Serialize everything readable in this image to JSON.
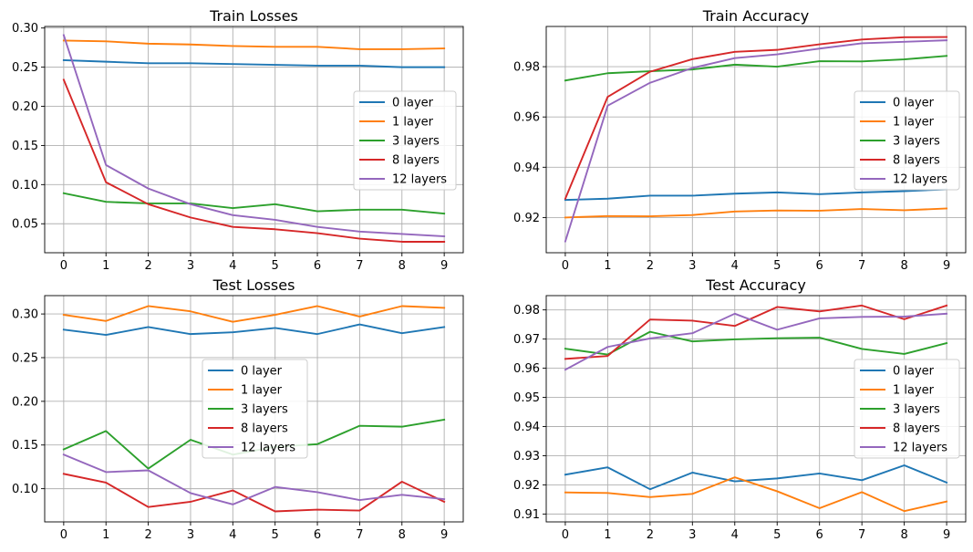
{
  "colors": {
    "c0": "#1f77b4",
    "c1": "#ff7f0e",
    "c2": "#2ca02c",
    "c3": "#d62728",
    "c4": "#9467bd",
    "grid": "#b0b0b0",
    "legend_border": "#cccccc"
  },
  "chart_data": [
    {
      "type": "line",
      "title": "Train Losses",
      "xlabel": "",
      "ylabel": "",
      "x": [
        0,
        1,
        2,
        3,
        4,
        5,
        6,
        7,
        8,
        9
      ],
      "xticks": [
        "0",
        "1",
        "2",
        "3",
        "4",
        "5",
        "6",
        "7",
        "8",
        "9"
      ],
      "yticks": [
        0.05,
        0.1,
        0.15,
        0.2,
        0.25,
        0.3
      ],
      "ytick_labels": [
        "0.05",
        "0.10",
        "0.15",
        "0.20",
        "0.25",
        "0.30"
      ],
      "xlim": [
        -0.45,
        9.45
      ],
      "ylim": [
        0.013,
        0.302
      ],
      "grid": true,
      "legend_position": "center-right",
      "series": [
        {
          "name": "0 layer",
          "color": "c0",
          "values": [
            0.259,
            0.257,
            0.255,
            0.255,
            0.254,
            0.253,
            0.252,
            0.252,
            0.25,
            0.25
          ]
        },
        {
          "name": "1 layer",
          "color": "c1",
          "values": [
            0.284,
            0.283,
            0.28,
            0.279,
            0.277,
            0.276,
            0.276,
            0.273,
            0.273,
            0.274
          ]
        },
        {
          "name": "3 layers",
          "color": "c2",
          "values": [
            0.089,
            0.078,
            0.076,
            0.076,
            0.07,
            0.075,
            0.066,
            0.068,
            0.068,
            0.063
          ]
        },
        {
          "name": "8 layers",
          "color": "c3",
          "values": [
            0.234,
            0.103,
            0.075,
            0.058,
            0.046,
            0.043,
            0.038,
            0.031,
            0.027,
            0.027
          ]
        },
        {
          "name": "12 layers",
          "color": "c4",
          "values": [
            0.291,
            0.125,
            0.095,
            0.075,
            0.061,
            0.055,
            0.046,
            0.04,
            0.037,
            0.034
          ]
        }
      ]
    },
    {
      "type": "line",
      "title": "Train Accuracy",
      "xlabel": "",
      "ylabel": "",
      "x": [
        0,
        1,
        2,
        3,
        4,
        5,
        6,
        7,
        8,
        9
      ],
      "xticks": [
        "0",
        "1",
        "2",
        "3",
        "4",
        "5",
        "6",
        "7",
        "8",
        "9"
      ],
      "yticks": [
        0.92,
        0.94,
        0.96,
        0.98
      ],
      "ytick_labels": [
        "0.92",
        "0.94",
        "0.96",
        "0.98"
      ],
      "xlim": [
        -0.45,
        9.45
      ],
      "ylim": [
        0.906,
        0.996
      ],
      "grid": true,
      "legend_position": "center-right",
      "series": [
        {
          "name": "0 layer",
          "color": "c0",
          "values": [
            0.927,
            0.9275,
            0.9287,
            0.9287,
            0.9295,
            0.93,
            0.9293,
            0.93,
            0.9305,
            0.9312
          ]
        },
        {
          "name": "1 layer",
          "color": "c1",
          "values": [
            0.92,
            0.9206,
            0.9205,
            0.921,
            0.9224,
            0.9228,
            0.9227,
            0.9234,
            0.9229,
            0.9236
          ]
        },
        {
          "name": "3 layers",
          "color": "c2",
          "values": [
            0.9745,
            0.9774,
            0.9782,
            0.9789,
            0.9808,
            0.98,
            0.9822,
            0.9821,
            0.9829,
            0.9843
          ]
        },
        {
          "name": "8 layers",
          "color": "c3",
          "values": [
            0.9275,
            0.968,
            0.978,
            0.983,
            0.9859,
            0.9867,
            0.9889,
            0.9908,
            0.9917,
            0.9918
          ]
        },
        {
          "name": "12 layers",
          "color": "c4",
          "values": [
            0.9105,
            0.9645,
            0.9736,
            0.9795,
            0.9834,
            0.9849,
            0.9872,
            0.9893,
            0.9899,
            0.9905
          ]
        }
      ]
    },
    {
      "type": "line",
      "title": "Test Losses",
      "xlabel": "",
      "ylabel": "",
      "x": [
        0,
        1,
        2,
        3,
        4,
        5,
        6,
        7,
        8,
        9
      ],
      "xticks": [
        "0",
        "1",
        "2",
        "3",
        "4",
        "5",
        "6",
        "7",
        "8",
        "9"
      ],
      "yticks": [
        0.1,
        0.15,
        0.2,
        0.25,
        0.3
      ],
      "ytick_labels": [
        "0.10",
        "0.15",
        "0.20",
        "0.25",
        "0.30"
      ],
      "xlim": [
        -0.45,
        9.45
      ],
      "ylim": [
        0.062,
        0.321
      ],
      "grid": true,
      "legend_position": "center",
      "series": [
        {
          "name": "0 layer",
          "color": "c0",
          "values": [
            0.282,
            0.276,
            0.285,
            0.277,
            0.279,
            0.284,
            0.277,
            0.288,
            0.278,
            0.285
          ]
        },
        {
          "name": "1 layer",
          "color": "c1",
          "values": [
            0.299,
            0.292,
            0.309,
            0.303,
            0.291,
            0.299,
            0.309,
            0.297,
            0.309,
            0.307
          ]
        },
        {
          "name": "3 layers",
          "color": "c2",
          "values": [
            0.145,
            0.166,
            0.123,
            0.156,
            0.139,
            0.148,
            0.151,
            0.172,
            0.171,
            0.179
          ]
        },
        {
          "name": "8 layers",
          "color": "c3",
          "values": [
            0.117,
            0.107,
            0.079,
            0.085,
            0.098,
            0.074,
            0.076,
            0.075,
            0.108,
            0.085
          ]
        },
        {
          "name": "12 layers",
          "color": "c4",
          "values": [
            0.139,
            0.119,
            0.121,
            0.095,
            0.082,
            0.102,
            0.096,
            0.087,
            0.093,
            0.088
          ]
        }
      ]
    },
    {
      "type": "line",
      "title": "Test Accuracy",
      "xlabel": "",
      "ylabel": "",
      "x": [
        0,
        1,
        2,
        3,
        4,
        5,
        6,
        7,
        8,
        9
      ],
      "xticks": [
        "0",
        "1",
        "2",
        "3",
        "4",
        "5",
        "6",
        "7",
        "8",
        "9"
      ],
      "yticks": [
        0.91,
        0.92,
        0.93,
        0.94,
        0.95,
        0.96,
        0.97,
        0.98
      ],
      "ytick_labels": [
        "0.91",
        "0.92",
        "0.93",
        "0.94",
        "0.95",
        "0.96",
        "0.97",
        "0.98"
      ],
      "xlim": [
        -0.45,
        9.45
      ],
      "ylim": [
        0.9073,
        0.9849
      ],
      "grid": true,
      "legend_position": "center-right",
      "series": [
        {
          "name": "0 layer",
          "color": "c0",
          "values": [
            0.9235,
            0.926,
            0.9185,
            0.9242,
            0.9212,
            0.9222,
            0.9239,
            0.9216,
            0.9267,
            0.9208
          ]
        },
        {
          "name": "1 layer",
          "color": "c1",
          "values": [
            0.9174,
            0.9172,
            0.9158,
            0.9169,
            0.9226,
            0.9178,
            0.912,
            0.9175,
            0.911,
            0.9143
          ]
        },
        {
          "name": "3 layers",
          "color": "c2",
          "values": [
            0.9667,
            0.9647,
            0.9725,
            0.9692,
            0.9699,
            0.9703,
            0.9705,
            0.9666,
            0.9649,
            0.9686
          ]
        },
        {
          "name": "8 layers",
          "color": "c3",
          "values": [
            0.9632,
            0.9642,
            0.9767,
            0.9763,
            0.9745,
            0.981,
            0.9795,
            0.9815,
            0.9768,
            0.9815
          ]
        },
        {
          "name": "12 layers",
          "color": "c4",
          "values": [
            0.9595,
            0.9673,
            0.9702,
            0.972,
            0.9787,
            0.9732,
            0.9771,
            0.9776,
            0.9777,
            0.9787
          ]
        }
      ]
    }
  ]
}
